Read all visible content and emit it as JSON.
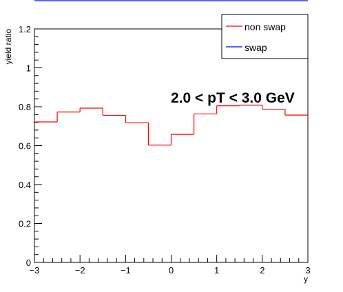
{
  "chart_data": {
    "type": "line",
    "xlabel": "y",
    "ylabel": "yield ratio",
    "xlim": [
      -3,
      3
    ],
    "ylim": [
      0,
      1.2
    ],
    "x_ticks": [
      -3,
      -2,
      -1,
      0,
      1,
      2,
      3
    ],
    "y_ticks": [
      0,
      0.2,
      0.4,
      0.6,
      0.8,
      1,
      1.2
    ],
    "x_tick_labels": [
      "−3",
      "−2",
      "−1",
      "0",
      "1",
      "2",
      "3"
    ],
    "y_tick_labels": [
      "0",
      "0.2",
      "0.4",
      "0.6",
      "0.8",
      "1",
      "1.2"
    ],
    "bin_edges": [
      -3,
      -2.5,
      -2,
      -1.5,
      -1,
      -0.5,
      0,
      0.5,
      1,
      1.5,
      2,
      2.5,
      3
    ],
    "series": [
      {
        "name": "non swap",
        "color": "#ff0000",
        "style": "step",
        "values": [
          0.722,
          0.773,
          0.793,
          0.756,
          0.718,
          0.603,
          0.658,
          0.763,
          0.805,
          0.808,
          0.787,
          0.757
        ]
      },
      {
        "name": "swap",
        "color": "#0000ff",
        "style": "step",
        "values": []
      }
    ],
    "annotation": "2.0 < pT < 3.0 GeV",
    "legend_placement": "top-right",
    "grid": false
  }
}
